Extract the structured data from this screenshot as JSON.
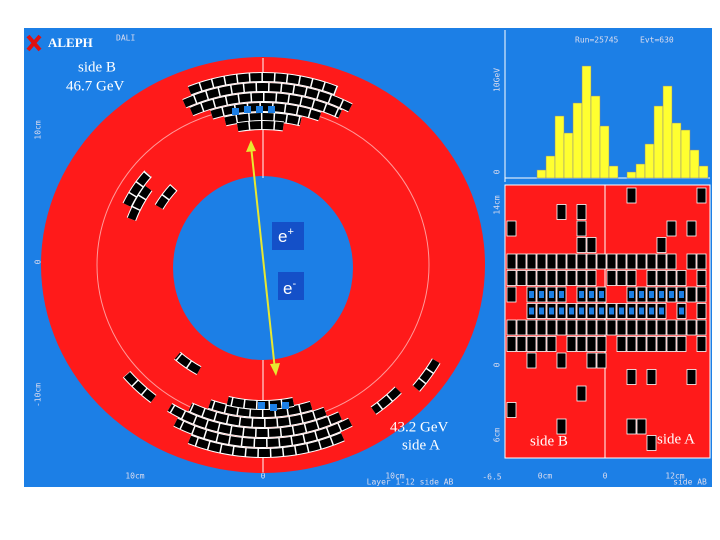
{
  "header": {
    "logo": "ALEPH",
    "program": "DALI",
    "run": "Run=25745",
    "event": "Evt=630"
  },
  "endcap_view": {
    "side_b_label": "side B",
    "side_b_energy": "46.7 GeV",
    "side_a_energy": "43.2 GeV",
    "side_a_label": "side A",
    "positron": {
      "base": "e",
      "charge": "+"
    },
    "electron": {
      "base": "e",
      "charge": "-"
    },
    "y_axis": [
      "10cm",
      "0",
      "-10cm"
    ],
    "x_axis": [
      "10cm",
      "0",
      "10cm"
    ],
    "caption": "Layer 1-12 side AB"
  },
  "histogram": {
    "y_axis": [
      "10GeV",
      "0"
    ]
  },
  "lego": {
    "left_label": "side B",
    "right_label": "side A",
    "y_axis": [
      "14cm",
      "0",
      "6cm"
    ],
    "x_axis": [
      "-6.5",
      "0cm",
      "0",
      "12cm"
    ],
    "caption": "side AB"
  }
}
